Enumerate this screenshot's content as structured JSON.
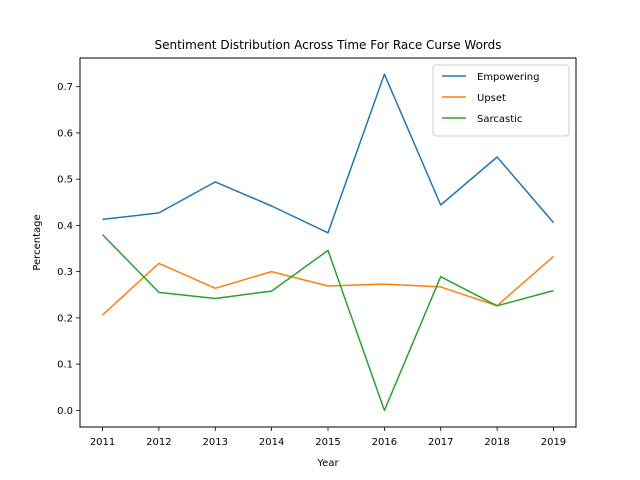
{
  "chart_data": {
    "type": "line",
    "title": "Sentiment Distribution Across Time For Race Curse Words",
    "xlabel": "Year",
    "ylabel": "Percentage",
    "x": [
      2011,
      2012,
      2013,
      2014,
      2015,
      2016,
      2017,
      2018,
      2019
    ],
    "xticks": [
      "2011",
      "2012",
      "2013",
      "2014",
      "2015",
      "2016",
      "2017",
      "2018",
      "2019"
    ],
    "yticks": [
      "0.0",
      "0.1",
      "0.2",
      "0.3",
      "0.4",
      "0.5",
      "0.6",
      "0.7"
    ],
    "ylim": [
      -0.036,
      0.762
    ],
    "xlim": [
      2010.6,
      2019.4
    ],
    "grid": false,
    "legend_position": "top-right",
    "series": [
      {
        "name": "Empowering",
        "color": "#1f77b4",
        "values": [
          0.413,
          0.427,
          0.494,
          0.442,
          0.384,
          0.727,
          0.444,
          0.548,
          0.406
        ]
      },
      {
        "name": "Upset",
        "color": "#ff7f0e",
        "values": [
          0.206,
          0.318,
          0.264,
          0.3,
          0.269,
          0.273,
          0.267,
          0.226,
          0.333
        ]
      },
      {
        "name": "Sarcastic",
        "color": "#2ca02c",
        "values": [
          0.38,
          0.255,
          0.242,
          0.258,
          0.346,
          0.0,
          0.289,
          0.226,
          0.259
        ]
      }
    ]
  }
}
